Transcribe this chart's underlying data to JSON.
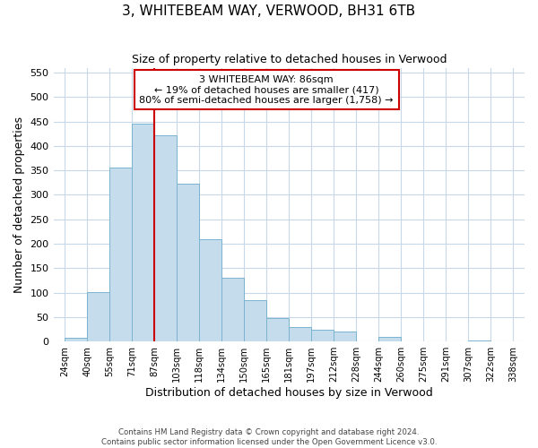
{
  "title": "3, WHITEBEAM WAY, VERWOOD, BH31 6TB",
  "subtitle": "Size of property relative to detached houses in Verwood",
  "xlabel": "Distribution of detached houses by size in Verwood",
  "ylabel": "Number of detached properties",
  "bin_labels": [
    "24sqm",
    "40sqm",
    "55sqm",
    "71sqm",
    "87sqm",
    "103sqm",
    "118sqm",
    "134sqm",
    "150sqm",
    "165sqm",
    "181sqm",
    "197sqm",
    "212sqm",
    "228sqm",
    "244sqm",
    "260sqm",
    "275sqm",
    "291sqm",
    "307sqm",
    "322sqm",
    "338sqm"
  ],
  "bar_values": [
    7,
    102,
    355,
    445,
    422,
    322,
    209,
    130,
    85,
    48,
    29,
    25,
    20,
    0,
    10,
    0,
    0,
    0,
    2,
    0
  ],
  "bar_color": "#c5dced",
  "bar_edge_color": "#7ab3d0",
  "vline_label_index": 4,
  "vline_color": "#cc0000",
  "ylim": [
    0,
    560
  ],
  "yticks": [
    0,
    50,
    100,
    150,
    200,
    250,
    300,
    350,
    400,
    450,
    500,
    550
  ],
  "annotation_title": "3 WHITEBEAM WAY: 86sqm",
  "annotation_line1": "← 19% of detached houses are smaller (417)",
  "annotation_line2": "80% of semi-detached houses are larger (1,758) →",
  "annotation_box_color": "#ffffff",
  "annotation_border_color": "#cc0000",
  "footer_line1": "Contains HM Land Registry data © Crown copyright and database right 2024.",
  "footer_line2": "Contains public sector information licensed under the Open Government Licence v3.0.",
  "background_color": "#ffffff",
  "grid_color": "#c8d8e8"
}
